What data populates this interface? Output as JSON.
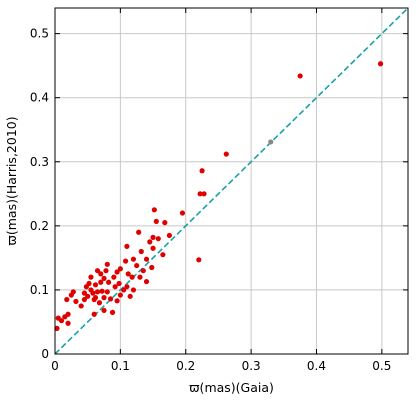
{
  "chart_data": {
    "type": "scatter",
    "xlabel": "ϖ(mas)(Gaia)",
    "ylabel": "ϖ(mas)(Harris,2010)",
    "xlim": [
      0,
      0.54
    ],
    "ylim": [
      0,
      0.54
    ],
    "xticks": [
      0,
      0.1,
      0.2,
      0.3,
      0.4,
      0.5
    ],
    "xtick_labels": [
      "0",
      "0.1",
      "0.2",
      "0.3",
      "0.4",
      "0.5"
    ],
    "yticks": [
      0,
      0.1,
      0.2,
      0.3,
      0.4,
      0.5
    ],
    "ytick_labels": [
      "0",
      "0.1",
      "0.2",
      "0.3",
      "0.4",
      "0.5"
    ],
    "grid": true,
    "legend": "none",
    "reference_line": {
      "style": "dashed",
      "color": "#17a2a8",
      "from": [
        0,
        0
      ],
      "to": [
        0.54,
        0.54
      ]
    },
    "series": [
      {
        "marker_color": "#e00000",
        "points": [
          [
            0.003,
            0.04
          ],
          [
            0.005,
            0.056
          ],
          [
            0.01,
            0.052
          ],
          [
            0.015,
            0.058
          ],
          [
            0.02,
            0.048
          ],
          [
            0.02,
            0.062
          ],
          [
            0.018,
            0.085
          ],
          [
            0.025,
            0.092
          ],
          [
            0.028,
            0.097
          ],
          [
            0.032,
            0.082
          ],
          [
            0.04,
            0.075
          ],
          [
            0.045,
            0.085
          ],
          [
            0.045,
            0.095
          ],
          [
            0.048,
            0.105
          ],
          [
            0.05,
            0.09
          ],
          [
            0.052,
            0.11
          ],
          [
            0.055,
            0.1
          ],
          [
            0.055,
            0.12
          ],
          [
            0.058,
            0.095
          ],
          [
            0.06,
            0.085
          ],
          [
            0.06,
            0.062
          ],
          [
            0.062,
            0.088
          ],
          [
            0.062,
            0.108
          ],
          [
            0.065,
            0.13
          ],
          [
            0.065,
            0.097
          ],
          [
            0.068,
            0.08
          ],
          [
            0.07,
            0.112
          ],
          [
            0.07,
            0.125
          ],
          [
            0.072,
            0.098
          ],
          [
            0.075,
            0.068
          ],
          [
            0.075,
            0.088
          ],
          [
            0.075,
            0.118
          ],
          [
            0.078,
            0.13
          ],
          [
            0.08,
            0.097
          ],
          [
            0.08,
            0.14
          ],
          [
            0.082,
            0.112
          ],
          [
            0.085,
            0.086
          ],
          [
            0.088,
            0.065
          ],
          [
            0.09,
            0.12
          ],
          [
            0.092,
            0.105
          ],
          [
            0.095,
            0.083
          ],
          [
            0.095,
            0.128
          ],
          [
            0.098,
            0.11
          ],
          [
            0.1,
            0.092
          ],
          [
            0.1,
            0.133
          ],
          [
            0.105,
            0.1
          ],
          [
            0.108,
            0.145
          ],
          [
            0.11,
            0.168
          ],
          [
            0.11,
            0.105
          ],
          [
            0.112,
            0.125
          ],
          [
            0.115,
            0.09
          ],
          [
            0.118,
            0.12
          ],
          [
            0.12,
            0.1
          ],
          [
            0.12,
            0.148
          ],
          [
            0.125,
            0.138
          ],
          [
            0.128,
            0.19
          ],
          [
            0.13,
            0.12
          ],
          [
            0.132,
            0.16
          ],
          [
            0.135,
            0.13
          ],
          [
            0.14,
            0.148
          ],
          [
            0.14,
            0.113
          ],
          [
            0.145,
            0.175
          ],
          [
            0.148,
            0.135
          ],
          [
            0.15,
            0.182
          ],
          [
            0.15,
            0.165
          ],
          [
            0.152,
            0.225
          ],
          [
            0.155,
            0.207
          ],
          [
            0.158,
            0.18
          ],
          [
            0.165,
            0.155
          ],
          [
            0.168,
            0.205
          ],
          [
            0.175,
            0.185
          ],
          [
            0.195,
            0.22
          ],
          [
            0.22,
            0.147
          ],
          [
            0.222,
            0.25
          ],
          [
            0.225,
            0.286
          ],
          [
            0.228,
            0.25
          ],
          [
            0.262,
            0.312
          ],
          [
            0.375,
            0.434
          ],
          [
            0.498,
            0.453
          ]
        ]
      },
      {
        "marker_color": "#888888",
        "points": [
          [
            0.33,
            0.331
          ]
        ]
      }
    ]
  }
}
